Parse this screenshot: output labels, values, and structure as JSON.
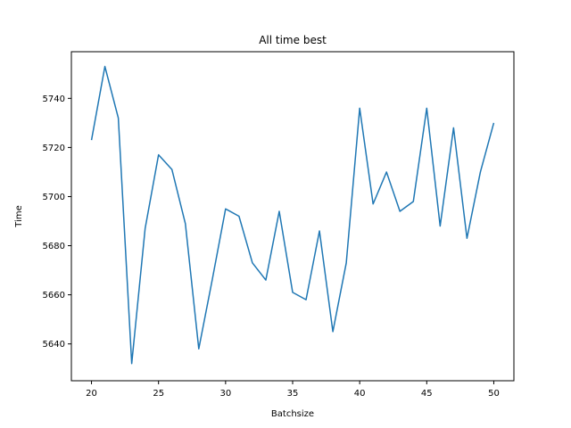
{
  "chart_data": {
    "type": "line",
    "title": "All time best",
    "xlabel": "Batchsize",
    "ylabel": "Time",
    "xlim": [
      18.5,
      51.5
    ],
    "ylim": [
      5625.0,
      5759.0
    ],
    "xticks": [
      20,
      25,
      30,
      35,
      40,
      45,
      50
    ],
    "yticks": [
      5640,
      5660,
      5680,
      5700,
      5720,
      5740
    ],
    "grid": false,
    "series": [
      {
        "color": "#1f77b4",
        "x": [
          20,
          21,
          22,
          23,
          24,
          25,
          26,
          27,
          28,
          29,
          30,
          31,
          32,
          33,
          34,
          35,
          36,
          37,
          38,
          39,
          40,
          41,
          42,
          43,
          44,
          45,
          46,
          47,
          48,
          49,
          50
        ],
        "y": [
          5723,
          5753,
          5732,
          5632,
          5687,
          5717,
          5711,
          5689,
          5638,
          5666,
          5695,
          5692,
          5673,
          5666,
          5694,
          5661,
          5658,
          5686,
          5645,
          5673,
          5736,
          5697,
          5710,
          5694,
          5698,
          5736,
          5688,
          5728,
          5683,
          5710,
          5730
        ]
      }
    ]
  }
}
